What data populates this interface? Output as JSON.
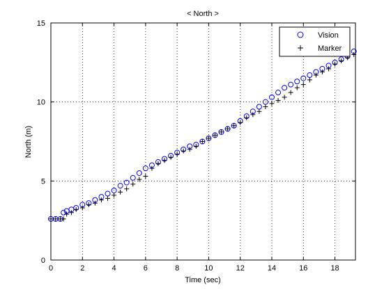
{
  "chart_data": {
    "type": "scatter",
    "title": "< North >",
    "xlabel": "Time (sec)",
    "ylabel": "North (m)",
    "xlim": [
      0,
      19.3
    ],
    "ylim": [
      0,
      15
    ],
    "xticks": [
      0,
      2,
      4,
      6,
      8,
      10,
      12,
      14,
      16,
      18
    ],
    "yticks": [
      0,
      5,
      10,
      15
    ],
    "grid": true,
    "legend_position": "top-right",
    "series": [
      {
        "name": "Vision",
        "marker": "circle",
        "color": "#0000ff",
        "points": [
          [
            0.0,
            2.6
          ],
          [
            0.3,
            2.6
          ],
          [
            0.6,
            2.6
          ],
          [
            0.8,
            3.0
          ],
          [
            1.0,
            3.1
          ],
          [
            1.3,
            3.2
          ],
          [
            1.6,
            3.3
          ],
          [
            2.0,
            3.5
          ],
          [
            2.4,
            3.6
          ],
          [
            2.8,
            3.8
          ],
          [
            3.2,
            4.0
          ],
          [
            3.6,
            4.2
          ],
          [
            4.0,
            4.4
          ],
          [
            4.4,
            4.7
          ],
          [
            4.8,
            4.9
          ],
          [
            5.2,
            5.2
          ],
          [
            5.6,
            5.5
          ],
          [
            6.0,
            5.8
          ],
          [
            6.4,
            6.0
          ],
          [
            6.8,
            6.2
          ],
          [
            7.2,
            6.4
          ],
          [
            7.6,
            6.6
          ],
          [
            8.0,
            6.8
          ],
          [
            8.4,
            7.0
          ],
          [
            8.8,
            7.2
          ],
          [
            9.2,
            7.3
          ],
          [
            9.6,
            7.5
          ],
          [
            10.0,
            7.7
          ],
          [
            10.4,
            7.9
          ],
          [
            10.8,
            8.1
          ],
          [
            11.2,
            8.3
          ],
          [
            11.6,
            8.5
          ],
          [
            12.0,
            8.8
          ],
          [
            12.4,
            9.1
          ],
          [
            12.8,
            9.4
          ],
          [
            13.2,
            9.7
          ],
          [
            13.6,
            10.0
          ],
          [
            14.0,
            10.3
          ],
          [
            14.4,
            10.6
          ],
          [
            14.8,
            10.9
          ],
          [
            15.2,
            11.1
          ],
          [
            15.6,
            11.3
          ],
          [
            16.0,
            11.5
          ],
          [
            16.4,
            11.7
          ],
          [
            16.8,
            11.9
          ],
          [
            17.2,
            12.1
          ],
          [
            17.6,
            12.3
          ],
          [
            18.0,
            12.5
          ],
          [
            18.4,
            12.7
          ],
          [
            18.8,
            12.9
          ],
          [
            19.2,
            13.2
          ]
        ]
      },
      {
        "name": "Marker",
        "marker": "plus",
        "color": "#000000",
        "points": [
          [
            0.0,
            2.6
          ],
          [
            0.3,
            2.6
          ],
          [
            0.6,
            2.6
          ],
          [
            0.8,
            2.6
          ],
          [
            1.0,
            2.9
          ],
          [
            1.3,
            3.0
          ],
          [
            1.6,
            3.2
          ],
          [
            2.0,
            3.3
          ],
          [
            2.4,
            3.5
          ],
          [
            2.8,
            3.6
          ],
          [
            3.2,
            3.8
          ],
          [
            3.6,
            3.9
          ],
          [
            4.0,
            4.1
          ],
          [
            4.4,
            4.3
          ],
          [
            4.8,
            4.5
          ],
          [
            5.2,
            4.8
          ],
          [
            5.6,
            5.1
          ],
          [
            6.0,
            5.3
          ],
          [
            6.4,
            5.8
          ],
          [
            6.8,
            6.1
          ],
          [
            7.2,
            6.3
          ],
          [
            7.6,
            6.5
          ],
          [
            8.0,
            6.7
          ],
          [
            8.4,
            6.9
          ],
          [
            8.8,
            7.0
          ],
          [
            9.2,
            7.2
          ],
          [
            9.6,
            7.5
          ],
          [
            10.0,
            7.7
          ],
          [
            10.4,
            7.9
          ],
          [
            10.8,
            8.1
          ],
          [
            11.2,
            8.3
          ],
          [
            11.6,
            8.5
          ],
          [
            12.0,
            8.7
          ],
          [
            12.4,
            9.0
          ],
          [
            12.8,
            9.2
          ],
          [
            13.2,
            9.4
          ],
          [
            13.6,
            9.7
          ],
          [
            14.0,
            9.9
          ],
          [
            14.4,
            10.1
          ],
          [
            14.8,
            10.3
          ],
          [
            15.2,
            10.6
          ],
          [
            15.6,
            10.9
          ],
          [
            16.0,
            11.1
          ],
          [
            16.4,
            11.4
          ],
          [
            16.8,
            11.7
          ],
          [
            17.2,
            11.9
          ],
          [
            17.6,
            12.1
          ],
          [
            18.0,
            12.4
          ],
          [
            18.4,
            12.6
          ],
          [
            18.8,
            12.8
          ],
          [
            19.2,
            13.0
          ]
        ]
      }
    ]
  }
}
